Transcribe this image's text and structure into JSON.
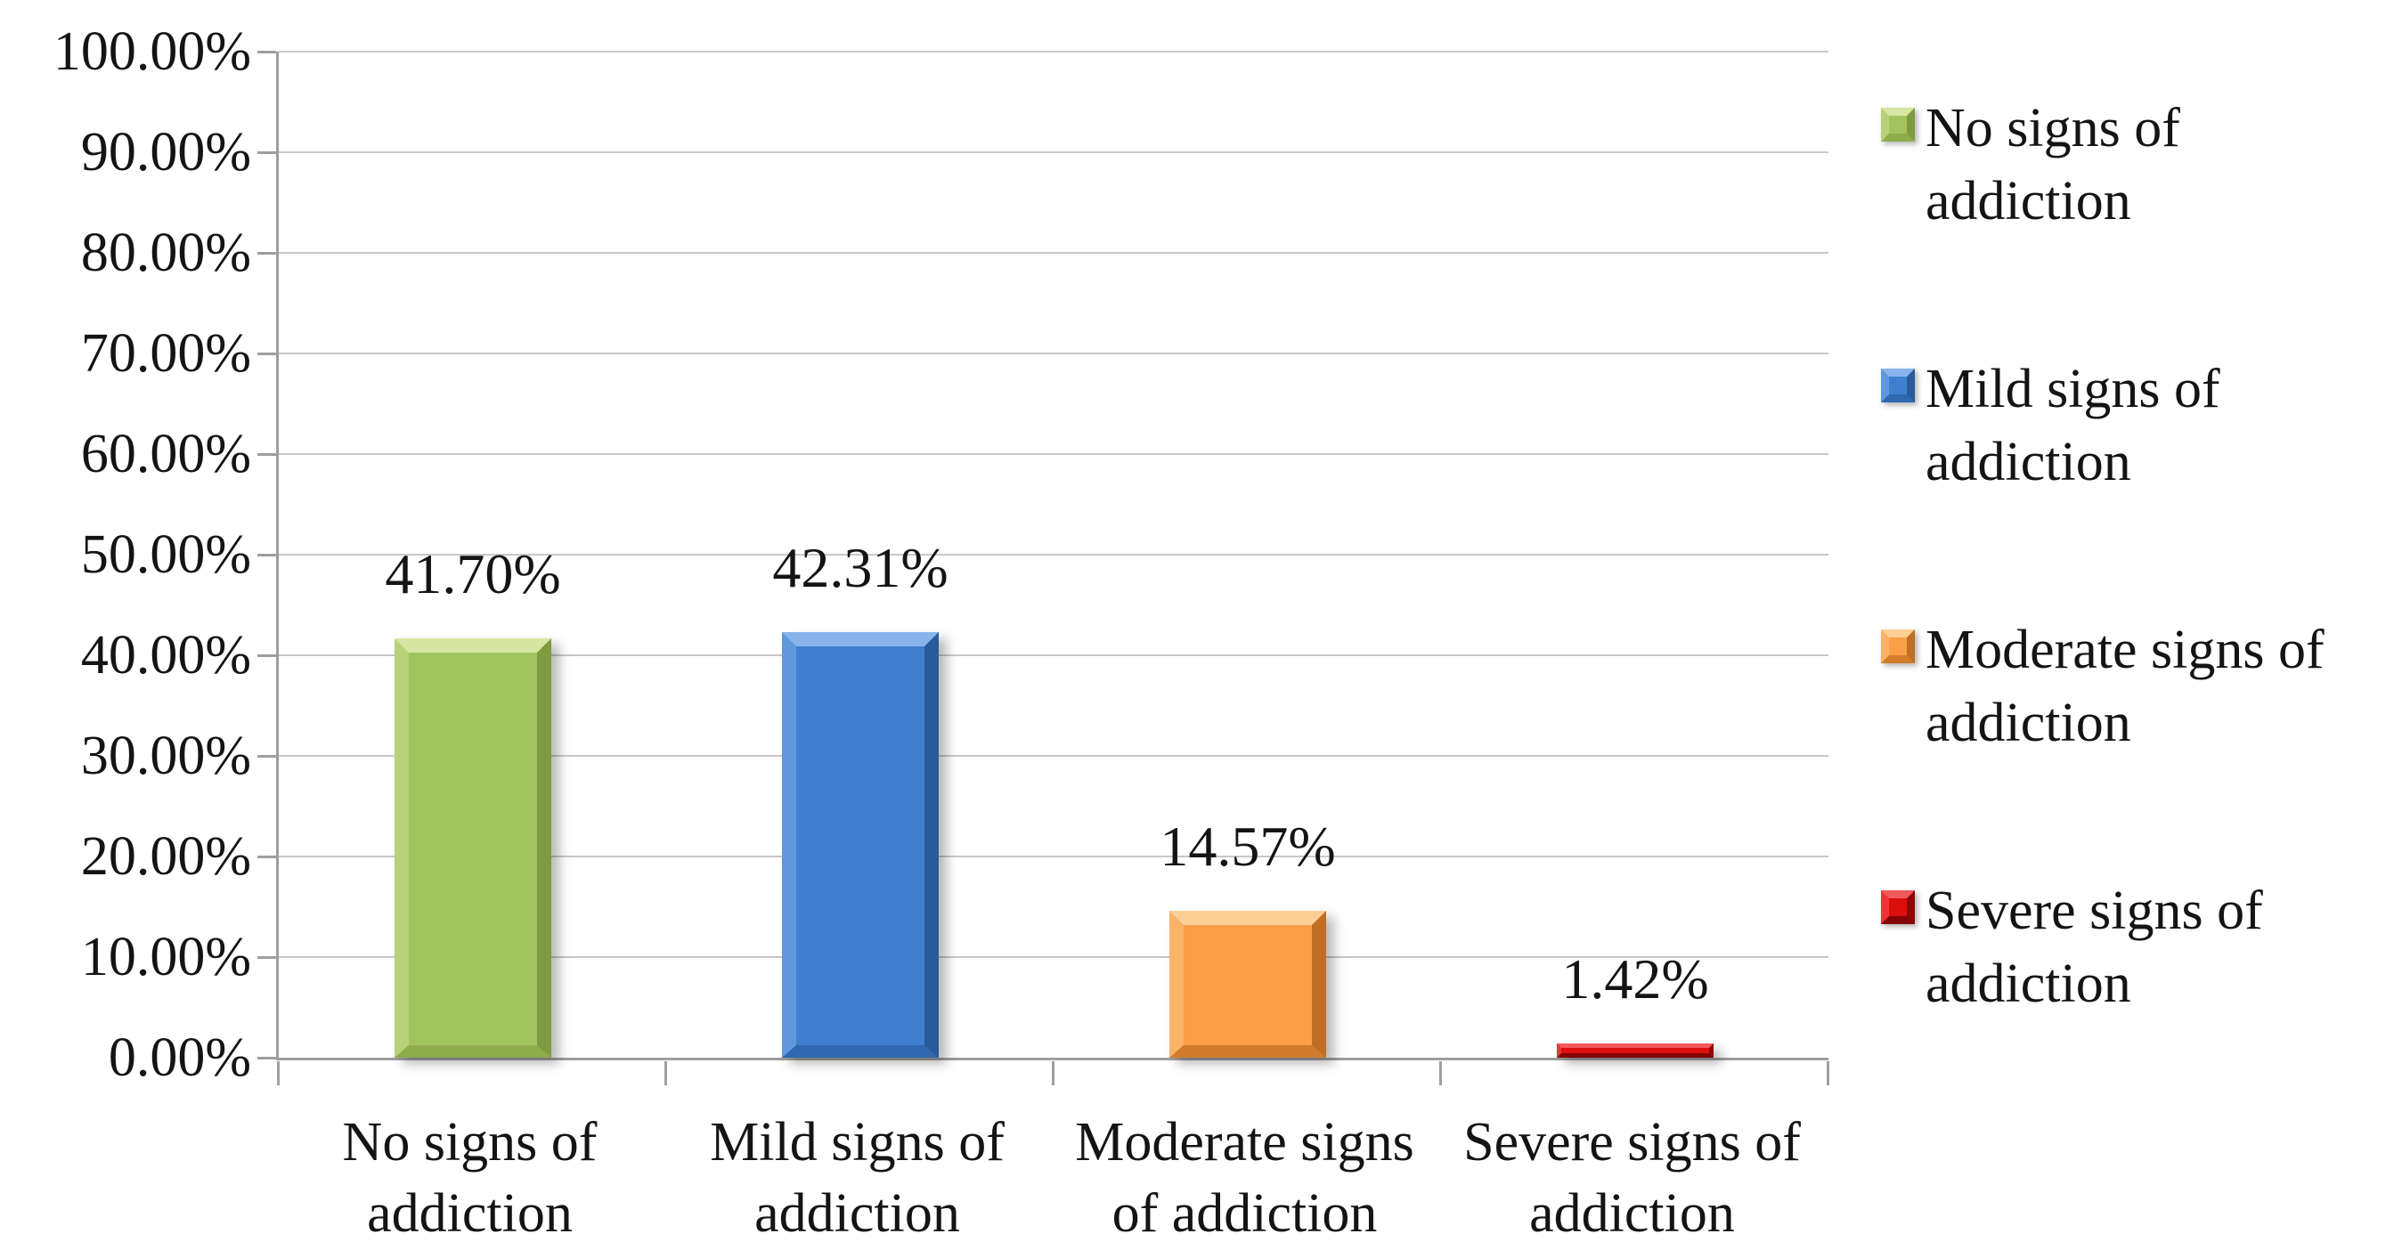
{
  "chart_data": {
    "type": "bar",
    "title": "",
    "xlabel": "",
    "ylabel": "",
    "categories": [
      "No signs of addiction",
      "Mild signs of addiction",
      "Moderate signs of addiction",
      "Severe signs of addiction"
    ],
    "category_lines": [
      [
        "No signs of",
        "addiction"
      ],
      [
        "Mild signs of",
        "addiction"
      ],
      [
        "Moderate signs",
        "of addiction"
      ],
      [
        "Severe signs of",
        "addiction"
      ]
    ],
    "values": [
      41.7,
      42.31,
      14.57,
      1.42
    ],
    "value_labels": [
      "41.70%",
      "42.31%",
      "14.57%",
      "1.42%"
    ],
    "ylim": [
      0,
      100
    ],
    "ytick_step": 10,
    "yticks": [
      {
        "value": 0,
        "label": "0.00%"
      },
      {
        "value": 10,
        "label": "10.00%"
      },
      {
        "value": 20,
        "label": "20.00%"
      },
      {
        "value": 30,
        "label": "30.00%"
      },
      {
        "value": 40,
        "label": "40.00%"
      },
      {
        "value": 50,
        "label": "50.00%"
      },
      {
        "value": 60,
        "label": "60.00%"
      },
      {
        "value": 70,
        "label": "70.00%"
      },
      {
        "value": 80,
        "label": "80.00%"
      },
      {
        "value": 90,
        "label": "90.00%"
      },
      {
        "value": 100,
        "label": "100.00%"
      }
    ],
    "grid": "horizontal",
    "legend_position": "right",
    "legend": [
      {
        "label": "No signs of addiction",
        "lines": [
          "No signs of",
          "addiction"
        ]
      },
      {
        "label": "Mild signs of addiction",
        "lines": [
          "Mild signs of",
          "addiction"
        ]
      },
      {
        "label": "Moderate signs of addiction",
        "lines": [
          "Moderate signs of",
          "addiction"
        ]
      },
      {
        "label": "Severe signs of addiction",
        "lines": [
          "Severe signs of",
          "addiction"
        ]
      }
    ],
    "series_colors": [
      {
        "name": "green",
        "body": "#a2c45e",
        "top": "#d6e6a2",
        "left": "#bad17b",
        "right": "#7e9b41",
        "bottom": "#8fac4d"
      },
      {
        "name": "blue",
        "body": "#3f7fce",
        "top": "#88b4eb",
        "left": "#6098dc",
        "right": "#295a99",
        "bottom": "#3067af"
      },
      {
        "name": "orange",
        "body": "#fa9e48",
        "top": "#fdcf97",
        "left": "#fbb269",
        "right": "#bf6e24",
        "bottom": "#d07c2c"
      },
      {
        "name": "red",
        "body": "#dc0e0e",
        "top": "#f15a5a",
        "left": "#e93636",
        "right": "#8e0606",
        "bottom": "#840404"
      }
    ]
  },
  "styles": {
    "axis_color": "#9e9e9e",
    "grid_color": "#c8c8c8",
    "text_color": "#141414",
    "background": "#ffffff"
  }
}
